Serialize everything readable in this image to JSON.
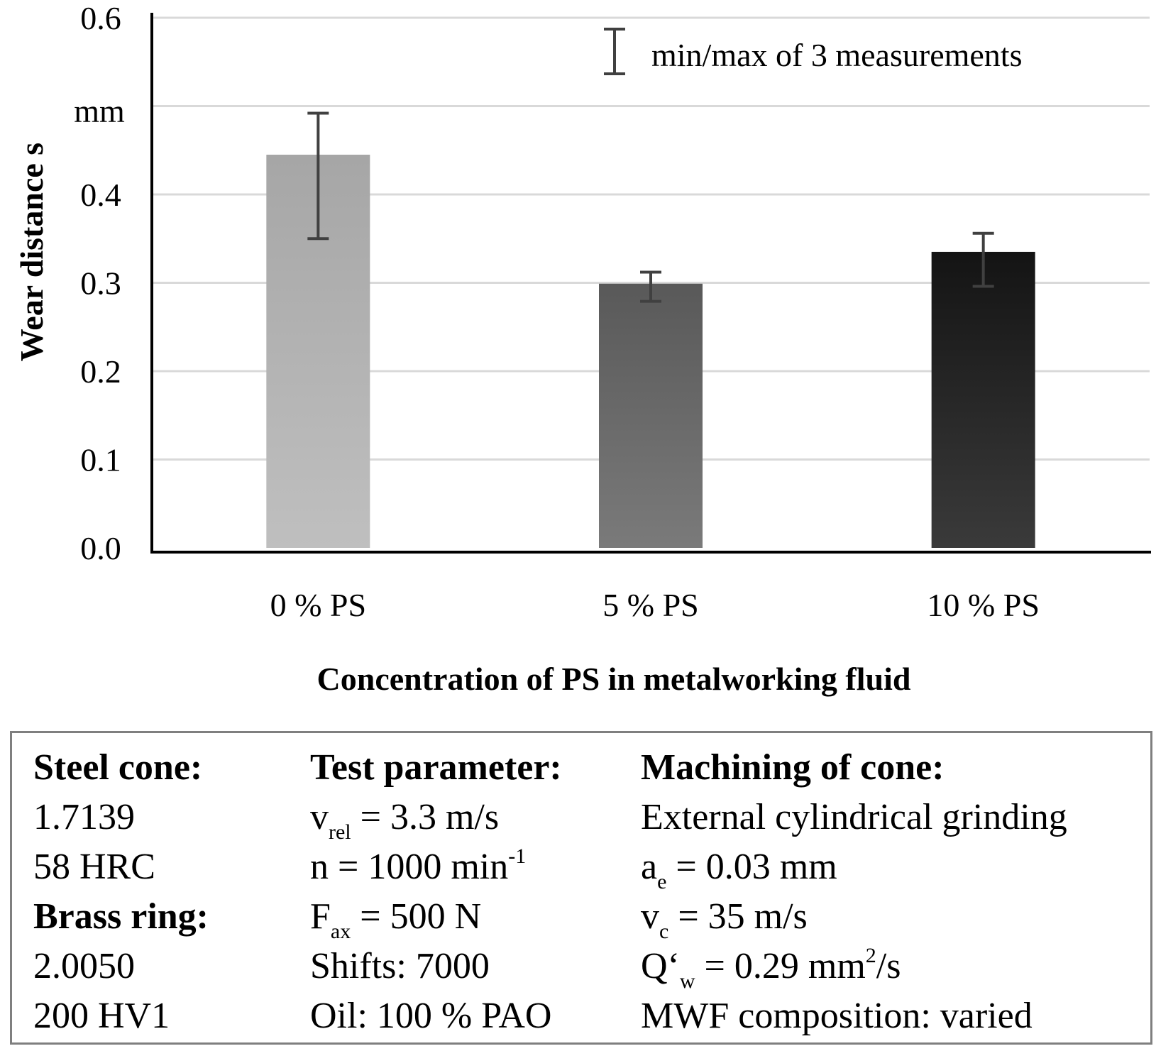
{
  "chart_data": {
    "type": "bar",
    "title": "",
    "categories": [
      "0 % PS",
      "5 % PS",
      "10 % PS"
    ],
    "values": [
      0.445,
      0.299,
      0.335
    ],
    "error_min": [
      0.35,
      0.279,
      0.296
    ],
    "error_max": [
      0.492,
      0.312,
      0.356
    ],
    "bar_colors": [
      [
        "#a6a6a6",
        "#bfbfbf"
      ],
      [
        "#595959",
        "#7a7a7a"
      ],
      [
        "#141414",
        "#3a3a3a"
      ]
    ],
    "ylim": [
      0,
      0.6
    ],
    "yticks": [
      0.0,
      0.1,
      0.2,
      0.3,
      0.4,
      0.6
    ],
    "ytick_labels": [
      "0.0",
      "0.1",
      "0.2",
      "0.3",
      "0.4",
      "0.6"
    ],
    "gridlines": [
      0.1,
      0.2,
      0.3,
      0.4,
      0.5,
      0.6
    ],
    "ylabel": "Wear distance s",
    "yunit": "mm",
    "xlabel": "Concentration of PS in metalworking fluid",
    "legend": "min/max of 3 measurements",
    "grid": true
  },
  "params": {
    "col1": {
      "head1": "Steel cone:",
      "l1": "1.7139",
      "l2": "58 HRC",
      "head2": "Brass ring:",
      "l3": "2.0050",
      "l4": "200 HV1"
    },
    "col2": {
      "head": "Test parameter:",
      "vrel_sym": "v",
      "vrel_sub": "rel",
      "vrel_val": " = 3.3 m/s",
      "n_text": "n = 1000 min",
      "n_sup": "-1",
      "fax_sym": "F",
      "fax_sub": "ax",
      "fax_val": " = 500 N",
      "shifts": "Shifts: 7000",
      "oil": "Oil: 100 % PAO"
    },
    "col3": {
      "head": "Machining of cone:",
      "grind": "External cylindrical grinding",
      "ae_sym": "a",
      "ae_sub": "e",
      "ae_val": " = 0.03 mm",
      "vc_sym": "v",
      "vc_sub": "c",
      "vc_val": " = 35 m/s",
      "qw_sym": "Q‘",
      "qw_sub": "w",
      "qw_val": " = 0.29 mm",
      "qw_sup": "2",
      "qw_tail": "/s",
      "mwf": "MWF composition: varied"
    }
  }
}
